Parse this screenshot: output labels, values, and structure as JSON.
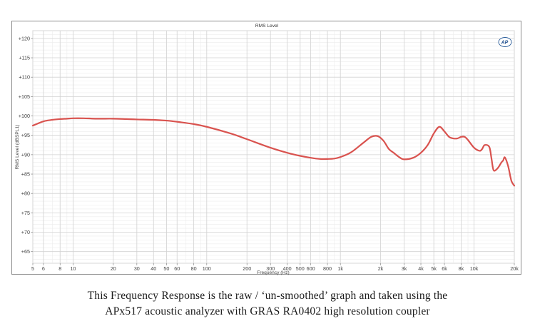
{
  "chart_data": {
    "type": "line",
    "title": "RMS Level",
    "xlabel": "Frequency (Hz)",
    "ylabel": "RMS Level (dBSPL1)",
    "x_scale": "log",
    "xlim": [
      5,
      20000
    ],
    "ylim": [
      62,
      122
    ],
    "grid": true,
    "x_ticks": [
      {
        "value": 5,
        "label": "5"
      },
      {
        "value": 6,
        "label": "6"
      },
      {
        "value": 8,
        "label": "8"
      },
      {
        "value": 10,
        "label": "10"
      },
      {
        "value": 20,
        "label": "20"
      },
      {
        "value": 30,
        "label": "30"
      },
      {
        "value": 40,
        "label": "40"
      },
      {
        "value": 50,
        "label": "50"
      },
      {
        "value": 60,
        "label": "60"
      },
      {
        "value": 80,
        "label": "80"
      },
      {
        "value": 100,
        "label": "100"
      },
      {
        "value": 200,
        "label": "200"
      },
      {
        "value": 300,
        "label": "300"
      },
      {
        "value": 400,
        "label": "400"
      },
      {
        "value": 500,
        "label": "500"
      },
      {
        "value": 600,
        "label": "600"
      },
      {
        "value": 800,
        "label": "800"
      },
      {
        "value": 1000,
        "label": "1k"
      },
      {
        "value": 2000,
        "label": "2k"
      },
      {
        "value": 3000,
        "label": "3k"
      },
      {
        "value": 4000,
        "label": "4k"
      },
      {
        "value": 5000,
        "label": "5k"
      },
      {
        "value": 6000,
        "label": "6k"
      },
      {
        "value": 8000,
        "label": "8k"
      },
      {
        "value": 10000,
        "label": "10k"
      },
      {
        "value": 20000,
        "label": "20k"
      }
    ],
    "y_ticks": [
      {
        "value": 65,
        "label": "+65"
      },
      {
        "value": 70,
        "label": "+70"
      },
      {
        "value": 75,
        "label": "+75"
      },
      {
        "value": 80,
        "label": "+80"
      },
      {
        "value": 85,
        "label": "+85"
      },
      {
        "value": 90,
        "label": "+90"
      },
      {
        "value": 95,
        "label": "+95"
      },
      {
        "value": 100,
        "label": "+100"
      },
      {
        "value": 105,
        "label": "+105"
      },
      {
        "value": 110,
        "label": "+110"
      },
      {
        "value": 115,
        "label": "+115"
      },
      {
        "value": 120,
        "label": "+120"
      }
    ],
    "series": [
      {
        "color": "#d9534f",
        "x": [
          5,
          6,
          7,
          8,
          9,
          10,
          12,
          15,
          20,
          25,
          30,
          40,
          50,
          60,
          80,
          100,
          150,
          200,
          300,
          400,
          500,
          600,
          700,
          800,
          900,
          1000,
          1200,
          1500,
          1700,
          1900,
          2100,
          2300,
          2500,
          2800,
          3000,
          3500,
          4000,
          4500,
          5000,
          5500,
          6000,
          6500,
          7000,
          7500,
          8000,
          8500,
          9000,
          10000,
          11000,
          11500,
          12000,
          13000,
          13500,
          14000,
          15000,
          16000,
          16500,
          17000,
          18000,
          19000,
          20000
        ],
        "y": [
          97.5,
          98.6,
          99.0,
          99.2,
          99.3,
          99.4,
          99.4,
          99.3,
          99.3,
          99.2,
          99.1,
          99.0,
          98.8,
          98.5,
          97.9,
          97.2,
          95.5,
          94.0,
          91.8,
          90.5,
          89.7,
          89.2,
          88.9,
          88.9,
          89.0,
          89.4,
          90.6,
          93.2,
          94.6,
          94.8,
          93.6,
          91.5,
          90.5,
          89.2,
          88.8,
          89.2,
          90.5,
          92.5,
          95.5,
          97.2,
          96.0,
          94.6,
          94.2,
          94.2,
          94.6,
          94.6,
          93.8,
          91.8,
          91.0,
          91.5,
          92.5,
          92.0,
          89.0,
          86.0,
          86.5,
          88.0,
          88.5,
          89.3,
          87.0,
          83.3,
          82.0
        ]
      }
    ]
  },
  "badge": {
    "text": "AP"
  },
  "caption": {
    "line1": "This Frequency Response is the raw / ‘un-smoothed’ graph and taken using the",
    "line2": "APx517 acoustic analyzer with GRAS RA0402 high resolution coupler"
  }
}
